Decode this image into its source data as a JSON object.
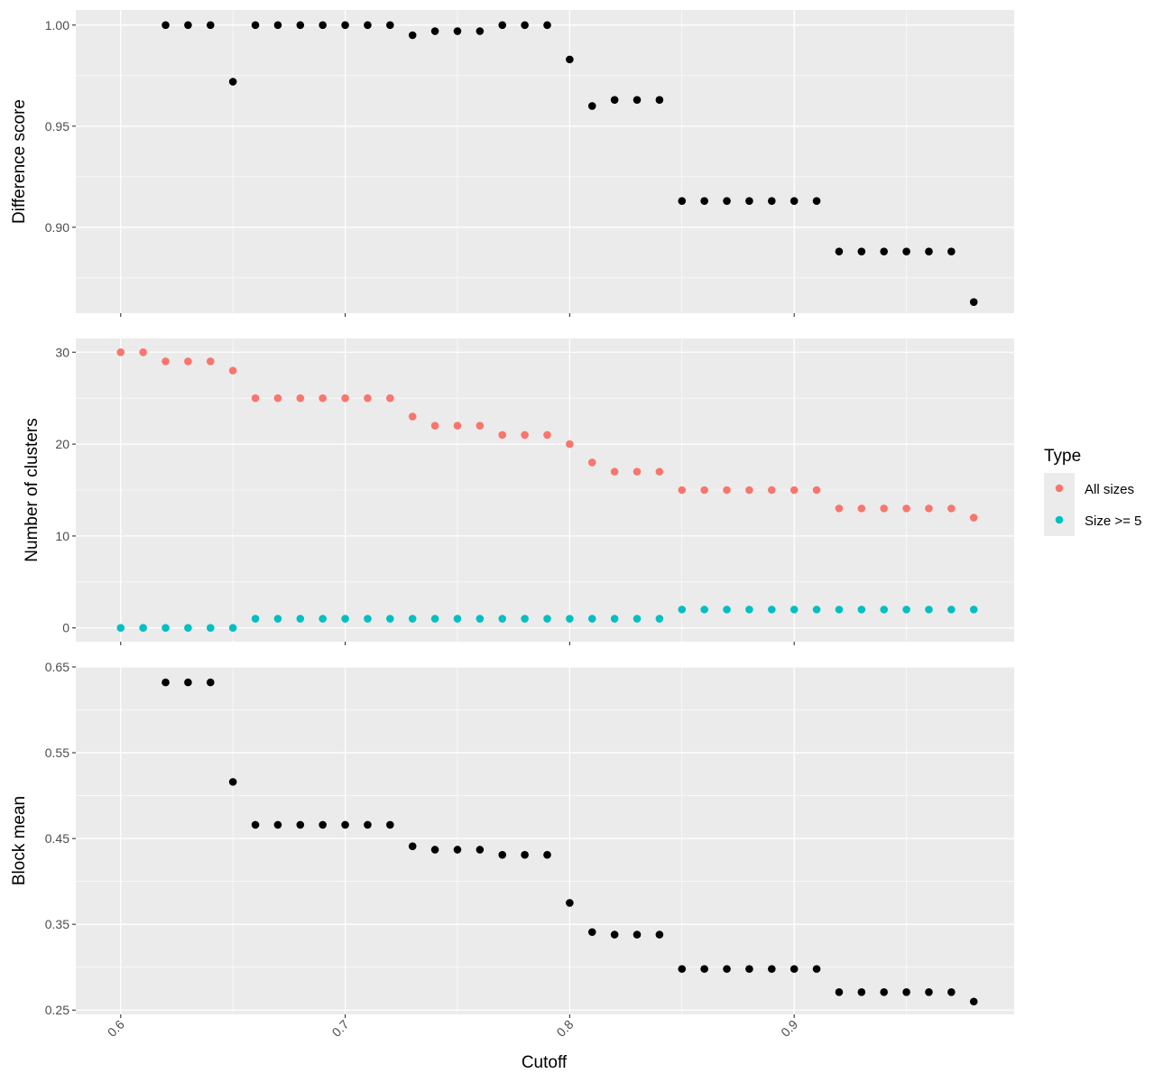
{
  "chart_data": {
    "type": "scatter",
    "xlabel": "Cutoff",
    "x_ticks": [
      0.6,
      0.7,
      0.8,
      0.9
    ],
    "x_tick_labels": [
      "0.6",
      "0.7",
      "0.8",
      "0.9"
    ],
    "xlim": [
      0.58,
      0.998
    ],
    "grid": true,
    "legend": {
      "title": "Type",
      "placement": "right",
      "entries": [
        {
          "name": "All sizes",
          "color": "#F8766D"
        },
        {
          "name": "Size >= 5",
          "color": "#00BFC4"
        }
      ]
    },
    "panels": [
      {
        "ylabel": "Difference score",
        "ylim": [
          0.8575,
          1.0075
        ],
        "y_ticks": [
          0.9,
          0.95,
          1.0
        ],
        "y_tick_labels": [
          "0.90",
          "0.95",
          "1.00"
        ],
        "series": [
          {
            "color": "#000000",
            "x": [
              0.62,
              0.63,
              0.64,
              0.65,
              0.66,
              0.67,
              0.68,
              0.69,
              0.7,
              0.71,
              0.72,
              0.73,
              0.74,
              0.75,
              0.76,
              0.77,
              0.78,
              0.79,
              0.8,
              0.81,
              0.82,
              0.83,
              0.84,
              0.85,
              0.86,
              0.87,
              0.88,
              0.89,
              0.9,
              0.91,
              0.92,
              0.93,
              0.94,
              0.95,
              0.96,
              0.97,
              0.98
            ],
            "y": [
              1.0,
              1.0,
              1.0,
              0.972,
              1.0,
              1.0,
              1.0,
              1.0,
              1.0,
              1.0,
              1.0,
              0.995,
              0.997,
              0.997,
              0.997,
              1.0,
              1.0,
              1.0,
              0.983,
              0.96,
              0.963,
              0.963,
              0.963,
              0.913,
              0.913,
              0.913,
              0.913,
              0.913,
              0.913,
              0.913,
              0.888,
              0.888,
              0.888,
              0.888,
              0.888,
              0.888,
              0.863
            ]
          }
        ]
      },
      {
        "ylabel": "Number of clusters",
        "ylim": [
          -1.5,
          31.5
        ],
        "y_ticks": [
          0,
          10,
          20,
          30
        ],
        "y_tick_labels": [
          "0",
          "10",
          "20",
          "30"
        ],
        "series": [
          {
            "name": "All sizes",
            "color": "#F8766D",
            "x": [
              0.6,
              0.61,
              0.62,
              0.63,
              0.64,
              0.65,
              0.66,
              0.67,
              0.68,
              0.69,
              0.7,
              0.71,
              0.72,
              0.73,
              0.74,
              0.75,
              0.76,
              0.77,
              0.78,
              0.79,
              0.8,
              0.81,
              0.82,
              0.83,
              0.84,
              0.85,
              0.86,
              0.87,
              0.88,
              0.89,
              0.9,
              0.91,
              0.92,
              0.93,
              0.94,
              0.95,
              0.96,
              0.97,
              0.98
            ],
            "y": [
              30,
              30,
              29,
              29,
              29,
              28,
              25,
              25,
              25,
              25,
              25,
              25,
              25,
              23,
              22,
              22,
              22,
              21,
              21,
              21,
              20,
              18,
              17,
              17,
              17,
              15,
              15,
              15,
              15,
              15,
              15,
              15,
              13,
              13,
              13,
              13,
              13,
              13,
              12
            ]
          },
          {
            "name": "Size >= 5",
            "color": "#00BFC4",
            "x": [
              0.6,
              0.61,
              0.62,
              0.63,
              0.64,
              0.65,
              0.66,
              0.67,
              0.68,
              0.69,
              0.7,
              0.71,
              0.72,
              0.73,
              0.74,
              0.75,
              0.76,
              0.77,
              0.78,
              0.79,
              0.8,
              0.81,
              0.82,
              0.83,
              0.84,
              0.85,
              0.86,
              0.87,
              0.88,
              0.89,
              0.9,
              0.91,
              0.92,
              0.93,
              0.94,
              0.95,
              0.96,
              0.97,
              0.98
            ],
            "y": [
              0,
              0,
              0,
              0,
              0,
              0,
              1,
              1,
              1,
              1,
              1,
              1,
              1,
              1,
              1,
              1,
              1,
              1,
              1,
              1,
              1,
              1,
              1,
              1,
              1,
              2,
              2,
              2,
              2,
              2,
              2,
              2,
              2,
              2,
              2,
              2,
              2,
              2,
              2
            ]
          }
        ]
      },
      {
        "ylabel": "Block mean",
        "ylim": [
          0.245,
          0.65
        ],
        "y_ticks": [
          0.25,
          0.35,
          0.45,
          0.55,
          0.65
        ],
        "y_tick_labels": [
          "0.25",
          "0.35",
          "0.45",
          "0.55",
          "0.65"
        ],
        "series": [
          {
            "color": "#000000",
            "x": [
              0.62,
              0.63,
              0.64,
              0.65,
              0.66,
              0.67,
              0.68,
              0.69,
              0.7,
              0.71,
              0.72,
              0.73,
              0.74,
              0.75,
              0.76,
              0.77,
              0.78,
              0.79,
              0.8,
              0.81,
              0.82,
              0.83,
              0.84,
              0.85,
              0.86,
              0.87,
              0.88,
              0.89,
              0.9,
              0.91,
              0.92,
              0.93,
              0.94,
              0.95,
              0.96,
              0.97,
              0.98
            ],
            "y": [
              0.632,
              0.632,
              0.632,
              0.516,
              0.466,
              0.466,
              0.466,
              0.466,
              0.466,
              0.466,
              0.466,
              0.441,
              0.437,
              0.437,
              0.437,
              0.431,
              0.431,
              0.431,
              0.375,
              0.341,
              0.338,
              0.338,
              0.338,
              0.298,
              0.298,
              0.298,
              0.298,
              0.298,
              0.298,
              0.298,
              0.271,
              0.271,
              0.271,
              0.271,
              0.271,
              0.271,
              0.26
            ]
          }
        ]
      }
    ]
  }
}
